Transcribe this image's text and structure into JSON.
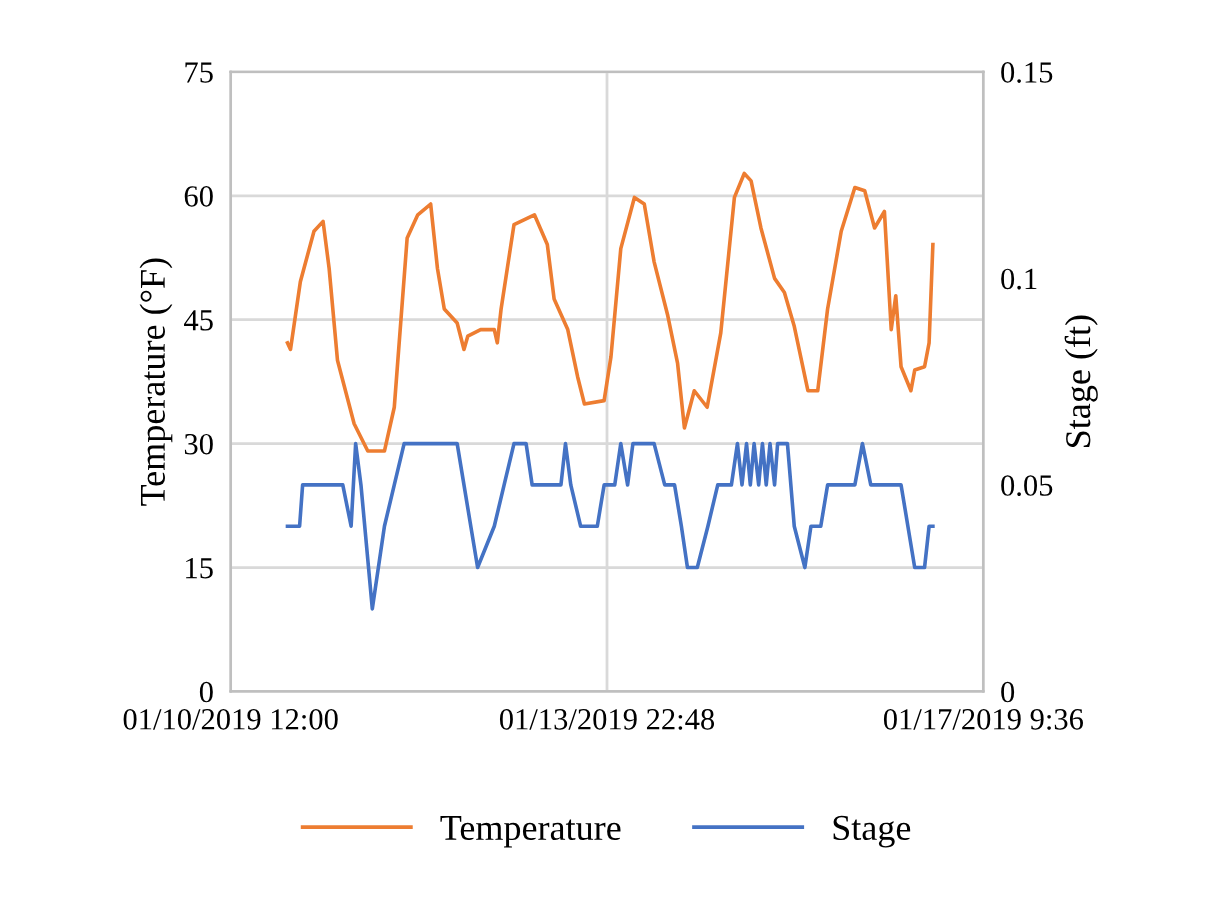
{
  "chart_data": {
    "type": "line",
    "xlabel": null,
    "ylabel": "Temperature (°F)",
    "y2label": "Stage (ft)",
    "xlim": [
      "2019-01-10T12:00",
      "2019-01-17T09:36"
    ],
    "xticks": [
      {
        "value": "2019-01-10T12:00",
        "label": "01/10/2019 12:00"
      },
      {
        "value": "2019-01-13T22:48",
        "label": "01/13/2019 22:48"
      },
      {
        "value": "2019-01-17T09:36",
        "label": "01/17/2019 9:36"
      }
    ],
    "ylim": [
      0,
      75
    ],
    "yticks": [
      0,
      15,
      30,
      45,
      60,
      75
    ],
    "y2lim": [
      0,
      0.15
    ],
    "y2ticks": [
      0,
      0.05,
      0.1,
      0.15
    ],
    "grid": true,
    "legend": "bottom",
    "marker": "none",
    "line_style": "solid",
    "series": [
      {
        "name": "Temperature",
        "color": "#ed7d31",
        "axis": "y",
        "x": [
          "2019-01-11T00:30",
          "2019-01-11T01:10",
          "2019-01-11T03:20",
          "2019-01-11T06:20",
          "2019-01-11T08:20",
          "2019-01-11T09:40",
          "2019-01-11T11:30",
          "2019-01-11T15:10",
          "2019-01-11T18:10",
          "2019-01-11T21:50",
          "2019-01-12T00:00",
          "2019-01-12T02:50",
          "2019-01-12T05:10",
          "2019-01-12T08:00",
          "2019-01-12T09:30",
          "2019-01-12T11:00",
          "2019-01-12T13:50",
          "2019-01-12T15:20",
          "2019-01-12T16:10",
          "2019-01-12T19:00",
          "2019-01-12T22:00",
          "2019-01-12T22:40",
          "2019-01-12T23:30",
          "2019-01-13T02:20",
          "2019-01-13T06:50",
          "2019-01-13T09:40",
          "2019-01-13T11:10",
          "2019-01-13T14:10",
          "2019-01-13T16:20",
          "2019-01-13T17:50",
          "2019-01-13T22:10",
          "2019-01-13T23:40",
          "2019-01-14T01:50",
          "2019-01-14T04:50",
          "2019-01-14T07:00",
          "2019-01-14T09:10",
          "2019-01-14T12:10",
          "2019-01-14T14:20",
          "2019-01-14T15:50",
          "2019-01-14T18:00",
          "2019-01-14T20:50",
          "2019-01-14T23:50",
          "2019-01-15T02:50",
          "2019-01-15T05:00",
          "2019-01-15T06:30",
          "2019-01-15T08:40",
          "2019-01-15T11:40",
          "2019-01-15T13:50",
          "2019-01-15T16:00",
          "2019-01-15T19:00",
          "2019-01-15T21:10",
          "2019-01-15T23:20",
          "2019-01-16T02:20",
          "2019-01-16T05:20",
          "2019-01-16T07:30",
          "2019-01-16T09:40",
          "2019-01-16T11:50",
          "2019-01-16T13:20",
          "2019-01-16T14:20",
          "2019-01-16T15:30",
          "2019-01-16T17:40",
          "2019-01-16T18:30",
          "2019-01-16T20:40",
          "2019-01-16T21:40",
          "2019-01-16T22:30"
        ],
        "values": [
          42.2,
          41.4,
          49.6,
          55.7,
          56.9,
          51.2,
          40.1,
          32.4,
          29.1,
          29.1,
          34.4,
          54.9,
          57.7,
          59.0,
          51.2,
          46.3,
          44.6,
          41.4,
          43.0,
          43.8,
          43.8,
          42.2,
          46.3,
          56.5,
          57.7,
          54.1,
          47.5,
          43.8,
          38.1,
          34.8,
          35.2,
          40.5,
          53.6,
          59.8,
          59.0,
          52.0,
          45.5,
          39.7,
          31.9,
          36.4,
          34.4,
          43.4,
          59.8,
          62.7,
          61.8,
          56.1,
          50.0,
          48.3,
          44.2,
          36.4,
          36.4,
          46.3,
          55.7,
          61.0,
          60.6,
          56.1,
          58.1,
          43.8,
          47.9,
          39.3,
          36.4,
          38.9,
          39.3,
          42.2,
          54.1
        ]
      },
      {
        "name": "Stage",
        "color": "#4472c4",
        "axis": "y2",
        "x": [
          "2019-01-11T00:30",
          "2019-01-11T03:10",
          "2019-01-11T03:50",
          "2019-01-11T12:40",
          "2019-01-11T14:30",
          "2019-01-11T15:30",
          "2019-01-11T16:40",
          "2019-01-11T19:10",
          "2019-01-11T21:50",
          "2019-01-12T00:00",
          "2019-01-12T02:10",
          "2019-01-12T13:50",
          "2019-01-12T16:50",
          "2019-01-12T18:20",
          "2019-01-12T22:00",
          "2019-01-13T00:10",
          "2019-01-13T02:20",
          "2019-01-13T05:00",
          "2019-01-13T06:20",
          "2019-01-13T12:40",
          "2019-01-13T13:40",
          "2019-01-13T14:50",
          "2019-01-13T17:00",
          "2019-01-13T20:40",
          "2019-01-13T22:10",
          "2019-01-14T00:30",
          "2019-01-14T01:50",
          "2019-01-14T03:20",
          "2019-01-14T04:30",
          "2019-01-14T09:10",
          "2019-01-14T11:30",
          "2019-01-14T13:40",
          "2019-01-14T15:10",
          "2019-01-14T16:30",
          "2019-01-14T18:40",
          "2019-01-14T21:00",
          "2019-01-14T23:10",
          "2019-01-15T02:10",
          "2019-01-15T03:30",
          "2019-01-15T04:30",
          "2019-01-15T05:30",
          "2019-01-15T06:20",
          "2019-01-15T07:10",
          "2019-01-15T08:10",
          "2019-01-15T09:00",
          "2019-01-15T09:50",
          "2019-01-15T10:40",
          "2019-01-15T11:40",
          "2019-01-15T12:20",
          "2019-01-15T14:30",
          "2019-01-15T16:00",
          "2019-01-15T18:20",
          "2019-01-15T19:40",
          "2019-01-15T21:50",
          "2019-01-15T23:20",
          "2019-01-16T05:20",
          "2019-01-16T07:00",
          "2019-01-16T08:50",
          "2019-01-16T15:30",
          "2019-01-16T17:00",
          "2019-01-16T18:30",
          "2019-01-16T20:40",
          "2019-01-16T21:40",
          "2019-01-16T22:30"
        ],
        "values": [
          0.04,
          0.04,
          0.05,
          0.05,
          0.04,
          0.06,
          0.05,
          0.02,
          0.04,
          0.05,
          0.06,
          0.06,
          0.04,
          0.03,
          0.04,
          0.05,
          0.06,
          0.06,
          0.05,
          0.05,
          0.06,
          0.05,
          0.04,
          0.04,
          0.05,
          0.05,
          0.06,
          0.05,
          0.06,
          0.06,
          0.05,
          0.05,
          0.04,
          0.03,
          0.03,
          0.04,
          0.05,
          0.05,
          0.06,
          0.05,
          0.06,
          0.05,
          0.06,
          0.05,
          0.06,
          0.05,
          0.06,
          0.05,
          0.06,
          0.06,
          0.04,
          0.03,
          0.04,
          0.04,
          0.05,
          0.05,
          0.06,
          0.05,
          0.05,
          0.04,
          0.03,
          0.03,
          0.04,
          0.04
        ]
      }
    ]
  }
}
